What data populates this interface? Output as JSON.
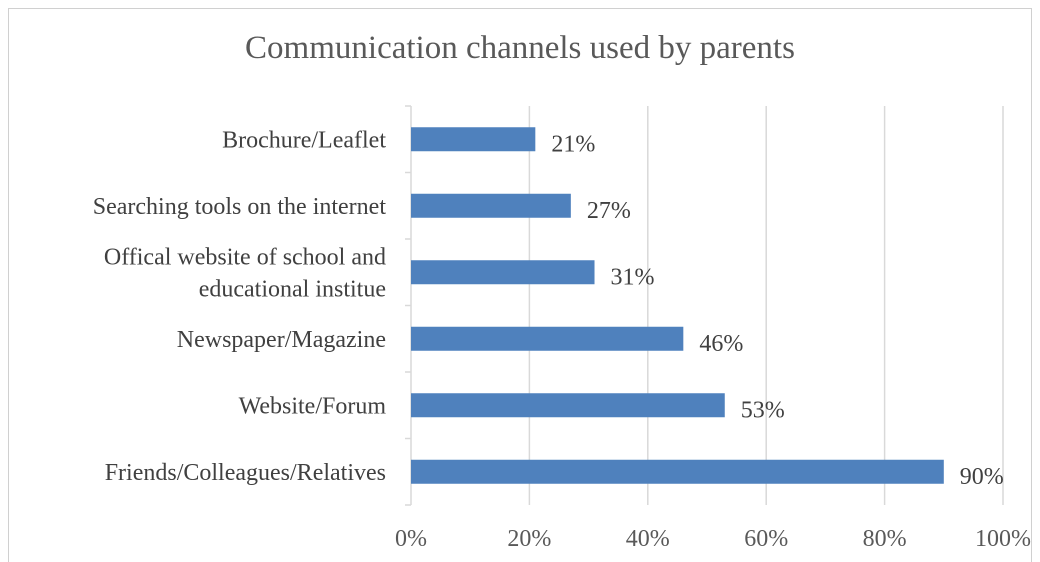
{
  "chart_data": {
    "type": "bar",
    "orientation": "horizontal",
    "title": "Communication channels used by parents",
    "categories": [
      [
        "Brochure/Leaflet"
      ],
      [
        "Searching tools on the internet"
      ],
      [
        "Offical website of school and",
        "educational institue"
      ],
      [
        "Newspaper/Magazine"
      ],
      [
        "Website/Forum"
      ],
      [
        "Friends/Colleagues/Relatives"
      ]
    ],
    "values": [
      21,
      27,
      31,
      46,
      53,
      90
    ],
    "data_labels": [
      "21%",
      "27%",
      "31%",
      "46%",
      "53%",
      "90%"
    ],
    "xlim": [
      0,
      100
    ],
    "x_ticks": [
      "0%",
      "20%",
      "40%",
      "60%",
      "80%",
      "100%"
    ],
    "x_tick_values": [
      0,
      20,
      40,
      60,
      80,
      100
    ],
    "grid": "vertical",
    "legend": "none",
    "bar_color": "#4f81bd",
    "grid_color": "#d9d9d9"
  }
}
